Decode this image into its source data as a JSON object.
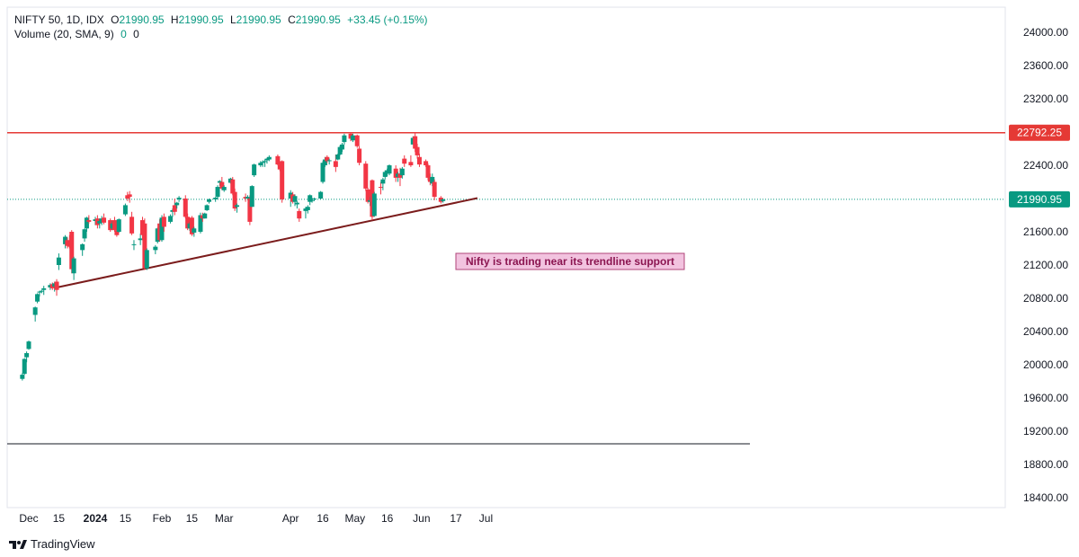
{
  "legend": {
    "symbol": "NIFTY 50, 1D, IDX",
    "o_label": "O",
    "o_value": "21990.95",
    "h_label": "H",
    "h_value": "21990.95",
    "l_label": "L",
    "l_value": "21990.95",
    "c_label": "C",
    "c_value": "21990.95",
    "change": "+33.45 (+0.15%)",
    "volume_label": "Volume (20, SMA, 9)",
    "volume_value1": "0",
    "volume_value2": "0"
  },
  "brand": "TradingView",
  "colors": {
    "up": "#089981",
    "down": "#f23645",
    "resistance": "#e53935",
    "trendline": "#7b1c1c",
    "last_price": "#089981",
    "note_bg": "#f2c3df",
    "note_border": "#b0457a",
    "volume_line": "#131722"
  },
  "chart_data": {
    "type": "candlestick",
    "symbol": "NIFTY 50",
    "interval": "1D",
    "ylim": [
      18200,
      24300
    ],
    "yticks": [
      24000,
      23600,
      23200,
      22800,
      22400,
      22000,
      21600,
      21200,
      20800,
      20400,
      20000,
      19600,
      19200,
      18800,
      18400
    ],
    "ytick_labels": [
      "24000.00",
      "23600.00",
      "23200.00",
      "22800.00",
      "22400.00",
      "22000.00",
      "21600.00",
      "21200.00",
      "20800.00",
      "20400.00",
      "20000.00",
      "19600.00",
      "19200.00",
      "18800.00",
      "18400.00"
    ],
    "xticks": [
      {
        "label": "Dec",
        "date": "2023-12-01",
        "bold": false
      },
      {
        "label": "15",
        "date": "2023-12-15",
        "bold": false
      },
      {
        "label": "2024",
        "date": "2024-01-01",
        "bold": true
      },
      {
        "label": "15",
        "date": "2024-01-15",
        "bold": false
      },
      {
        "label": "Feb",
        "date": "2024-02-01",
        "bold": false
      },
      {
        "label": "15",
        "date": "2024-02-15",
        "bold": false
      },
      {
        "label": "Mar",
        "date": "2024-03-01",
        "bold": false
      },
      {
        "label": "Apr",
        "date": "2024-04-01",
        "bold": false
      },
      {
        "label": "16",
        "date": "2024-04-16",
        "bold": false
      },
      {
        "label": "May",
        "date": "2024-05-01",
        "bold": false
      },
      {
        "label": "16",
        "date": "2024-05-16",
        "bold": false
      },
      {
        "label": "Jun",
        "date": "2024-06-01",
        "bold": false
      },
      {
        "label": "17",
        "date": "2024-06-17",
        "bold": false
      },
      {
        "label": "Jul",
        "date": "2024-07-01",
        "bold": false
      }
    ],
    "candles": [
      [
        "2023-11-28",
        19830,
        19900,
        19810,
        19880
      ],
      [
        "2023-11-29",
        19890,
        20080,
        19880,
        20070
      ],
      [
        "2023-11-30",
        20090,
        20160,
        20030,
        20140
      ],
      [
        "2023-12-01",
        20190,
        20290,
        20180,
        20280
      ],
      [
        "2023-12-04",
        20600,
        20700,
        20520,
        20690
      ],
      [
        "2023-12-05",
        20760,
        20860,
        20740,
        20850
      ],
      [
        "2023-12-06",
        20870,
        20890,
        20820,
        20880
      ],
      [
        "2023-12-07",
        20880,
        20900,
        20860,
        20890
      ],
      [
        "2023-12-08",
        20900,
        20950,
        20840,
        20920
      ],
      [
        "2023-12-11",
        20930,
        20980,
        20900,
        20960
      ],
      [
        "2023-12-12",
        20970,
        20990,
        20900,
        20920
      ],
      [
        "2023-12-13",
        20940,
        21000,
        20880,
        20980
      ],
      [
        "2023-12-14",
        21000,
        21030,
        20830,
        20900
      ],
      [
        "2023-12-15",
        21200,
        21340,
        21140,
        21290
      ],
      [
        "2023-12-18",
        21450,
        21560,
        21400,
        21540
      ],
      [
        "2023-12-19",
        21500,
        21530,
        21400,
        21430
      ],
      [
        "2023-12-20",
        21490,
        21560,
        21400,
        21420
      ],
      [
        "2023-12-21",
        21600,
        21620,
        21100,
        21150
      ],
      [
        "2023-12-22",
        21100,
        21300,
        21020,
        21280
      ],
      [
        "2023-12-26",
        21380,
        21460,
        21310,
        21450
      ],
      [
        "2023-12-27",
        21520,
        21640,
        21480,
        21630
      ],
      [
        "2023-12-28",
        21640,
        21780,
        21600,
        21770
      ],
      [
        "2023-12-29",
        21740,
        21800,
        21700,
        21720
      ],
      [
        "2024-01-01",
        21730,
        21780,
        21680,
        21750
      ],
      [
        "2024-01-02",
        21760,
        21800,
        21640,
        21680
      ],
      [
        "2024-01-03",
        21700,
        21760,
        21640,
        21730
      ],
      [
        "2024-01-04",
        21720,
        21790,
        21680,
        21760
      ],
      [
        "2024-01-05",
        21770,
        21820,
        21690,
        21710
      ],
      [
        "2024-01-08",
        21740,
        21760,
        21600,
        21620
      ],
      [
        "2024-01-09",
        21640,
        21730,
        21620,
        21700
      ],
      [
        "2024-01-10",
        21740,
        21780,
        21600,
        21620
      ],
      [
        "2024-01-11",
        21620,
        21680,
        21540,
        21560
      ],
      [
        "2024-01-12",
        21600,
        21760,
        21590,
        21750
      ],
      [
        "2024-01-15",
        21810,
        21940,
        21790,
        21920
      ],
      [
        "2024-01-16",
        22040,
        22080,
        21970,
        22000
      ],
      [
        "2024-01-17",
        22050,
        22090,
        21950,
        22020
      ],
      [
        "2024-01-18",
        21780,
        21840,
        21560,
        21580
      ],
      [
        "2024-01-19",
        21440,
        21500,
        21380,
        21450
      ],
      [
        "2024-01-22",
        21500,
        21580,
        21440,
        21520
      ],
      [
        "2024-01-23",
        21740,
        21780,
        21500,
        21560
      ],
      [
        "2024-01-24",
        21700,
        21760,
        21140,
        21160
      ],
      [
        "2024-01-25",
        21160,
        21400,
        21140,
        21380
      ],
      [
        "2024-01-29",
        21380,
        21440,
        21330,
        21420
      ],
      [
        "2024-01-30",
        21480,
        21650,
        21460,
        21640
      ],
      [
        "2024-01-31",
        21700,
        21750,
        21480,
        21500
      ],
      [
        "2024-02-01",
        21500,
        21800,
        21480,
        21770
      ],
      [
        "2024-02-02",
        21780,
        21820,
        21600,
        21660
      ],
      [
        "2024-02-05",
        21720,
        21810,
        21700,
        21790
      ],
      [
        "2024-02-06",
        21840,
        21880,
        21780,
        21860
      ],
      [
        "2024-02-07",
        21920,
        22000,
        21800,
        21840
      ],
      [
        "2024-02-08",
        21920,
        21960,
        21880,
        21950
      ],
      [
        "2024-02-09",
        21990,
        22030,
        21960,
        22010
      ],
      [
        "2024-02-12",
        22000,
        22040,
        21760,
        21780
      ],
      [
        "2024-02-13",
        21780,
        21820,
        21620,
        21640
      ],
      [
        "2024-02-14",
        21640,
        21720,
        21610,
        21700
      ],
      [
        "2024-02-15",
        21770,
        21790,
        21550,
        21570
      ],
      [
        "2024-02-16",
        21590,
        21660,
        21540,
        21640
      ],
      [
        "2024-02-19",
        21600,
        21830,
        21580,
        21800
      ],
      [
        "2024-02-20",
        21800,
        21830,
        21720,
        21760
      ],
      [
        "2024-02-21",
        21760,
        21830,
        21760,
        21820
      ],
      [
        "2024-02-22",
        21860,
        21930,
        21850,
        21920
      ],
      [
        "2024-02-23",
        21960,
        22000,
        21940,
        21990
      ],
      [
        "2024-02-26",
        21990,
        22020,
        21960,
        22010
      ],
      [
        "2024-02-27",
        22020,
        22160,
        22000,
        22140
      ],
      [
        "2024-02-28",
        22190,
        22220,
        22150,
        22210
      ],
      [
        "2024-02-29",
        22200,
        22260,
        22100,
        22120
      ],
      [
        "2024-03-01",
        22100,
        22160,
        22080,
        22140
      ],
      [
        "2024-03-04",
        22190,
        22250,
        22180,
        22240
      ],
      [
        "2024-03-05",
        22230,
        22260,
        22040,
        22060
      ],
      [
        "2024-03-06",
        22080,
        22120,
        21850,
        21880
      ],
      [
        "2024-03-07",
        21900,
        21940,
        21830,
        21920
      ],
      [
        "2024-03-11",
        22020,
        22060,
        21960,
        22000
      ],
      [
        "2024-03-12",
        22000,
        22040,
        21980,
        22020
      ],
      [
        "2024-03-13",
        22000,
        22040,
        21680,
        21720
      ],
      [
        "2024-03-14",
        21900,
        22160,
        21900,
        22150
      ],
      [
        "2024-03-15",
        22280,
        22420,
        22260,
        22410
      ],
      [
        "2024-03-18",
        22400,
        22450,
        22380,
        22430
      ],
      [
        "2024-03-19",
        22430,
        22460,
        22380,
        22440
      ],
      [
        "2024-03-20",
        22440,
        22470,
        22380,
        22450
      ],
      [
        "2024-03-21",
        22460,
        22490,
        22420,
        22480
      ],
      [
        "2024-03-22",
        22470,
        22520,
        22450,
        22500
      ],
      [
        "2024-03-26",
        22510,
        22530,
        22400,
        22410
      ],
      [
        "2024-03-27",
        22410,
        22420,
        22330,
        22350
      ],
      [
        "2024-03-28",
        22450,
        22460,
        21950,
        21990
      ],
      [
        "2024-04-01",
        22000,
        22100,
        21900,
        22070
      ],
      [
        "2024-04-02",
        22050,
        22080,
        21940,
        21960
      ],
      [
        "2024-04-03",
        21960,
        22050,
        21910,
        22030
      ],
      [
        "2024-04-04",
        21930,
        21970,
        21880,
        21950
      ],
      [
        "2024-04-05",
        21850,
        21880,
        21720,
        21760
      ],
      [
        "2024-04-08",
        21850,
        21900,
        21760,
        21880
      ],
      [
        "2024-04-09",
        21860,
        21920,
        21820,
        21900
      ],
      [
        "2024-04-10",
        21960,
        22050,
        21920,
        22040
      ],
      [
        "2024-04-11",
        21980,
        22010,
        21950,
        21980
      ],
      [
        "2024-04-12",
        21990,
        22010,
        21970,
        22000
      ],
      [
        "2024-04-15",
        22000,
        22090,
        21990,
        22080
      ],
      [
        "2024-04-16",
        22200,
        22450,
        22180,
        22430
      ],
      [
        "2024-04-17",
        22400,
        22500,
        22380,
        22470
      ],
      [
        "2024-04-18",
        22500,
        22520,
        22430,
        22450
      ],
      [
        "2024-04-19",
        22450,
        22480,
        22410,
        22460
      ],
      [
        "2024-04-22",
        22450,
        22530,
        22320,
        22380
      ],
      [
        "2024-04-23",
        22470,
        22540,
        22460,
        22530
      ],
      [
        "2024-04-24",
        22530,
        22640,
        22520,
        22620
      ],
      [
        "2024-04-25",
        22590,
        22670,
        22560,
        22650
      ],
      [
        "2024-04-26",
        22680,
        22780,
        22650,
        22760
      ],
      [
        "2024-04-29",
        22780,
        22800,
        22690,
        22720
      ],
      [
        "2024-04-30",
        22700,
        22780,
        22680,
        22760
      ],
      [
        "2024-05-02",
        22760,
        22770,
        22610,
        22630
      ],
      [
        "2024-05-03",
        22600,
        22630,
        22400,
        22430
      ],
      [
        "2024-05-06",
        22420,
        22450,
        22090,
        22120
      ],
      [
        "2024-05-07",
        22110,
        22130,
        21940,
        21960
      ],
      [
        "2024-05-08",
        21960,
        22020,
        21910,
        21980
      ],
      [
        "2024-05-09",
        22220,
        22230,
        21740,
        21780
      ],
      [
        "2024-05-10",
        21790,
        22080,
        21780,
        22060
      ],
      [
        "2024-05-13",
        22140,
        22200,
        22050,
        22130
      ],
      [
        "2024-05-14",
        22180,
        22250,
        22100,
        22230
      ],
      [
        "2024-05-15",
        22260,
        22340,
        22230,
        22320
      ],
      [
        "2024-05-16",
        22300,
        22360,
        22270,
        22340
      ],
      [
        "2024-05-17",
        22300,
        22410,
        22280,
        22400
      ],
      [
        "2024-05-20",
        22360,
        22400,
        22200,
        22250
      ],
      [
        "2024-05-21",
        22260,
        22320,
        22200,
        22300
      ],
      [
        "2024-05-22",
        22300,
        22370,
        22150,
        22250
      ],
      [
        "2024-05-23",
        22280,
        22380,
        22240,
        22360
      ],
      [
        "2024-05-24",
        22480,
        22520,
        22380,
        22420
      ],
      [
        "2024-05-27",
        22440,
        22520,
        22380,
        22400
      ],
      [
        "2024-05-28",
        22650,
        22750,
        22650,
        22730
      ],
      [
        "2024-05-29",
        22750,
        22800,
        22560,
        22600
      ],
      [
        "2024-05-30",
        22620,
        22660,
        22480,
        22520
      ],
      [
        "2024-05-31",
        22500,
        22540,
        22380,
        22410
      ],
      [
        "2024-06-03",
        22450,
        22470,
        22380,
        22400
      ],
      [
        "2024-06-04",
        22400,
        22420,
        22220,
        22250
      ],
      [
        "2024-06-05",
        22260,
        22300,
        22160,
        22200
      ],
      [
        "2024-06-06",
        22180,
        22300,
        22150,
        22260
      ],
      [
        "2024-06-07",
        22200,
        22230,
        21980,
        22020
      ],
      [
        "2024-06-10",
        22010,
        22030,
        21940,
        21960
      ],
      [
        "2024-06-11",
        21970,
        22000,
        21950,
        21990
      ]
    ],
    "horizontal_lines": [
      {
        "name": "resistance",
        "value": 22792.25,
        "label": "22792.25"
      },
      {
        "name": "last-price",
        "value": 21990.95,
        "label": "21990.95"
      }
    ],
    "trendline": {
      "start": {
        "date": "2023-12-14",
        "value": 20930
      },
      "end": {
        "date": "2024-06-27",
        "value": 22005
      }
    },
    "annotation": "Nifty is trading near its trendline support"
  }
}
